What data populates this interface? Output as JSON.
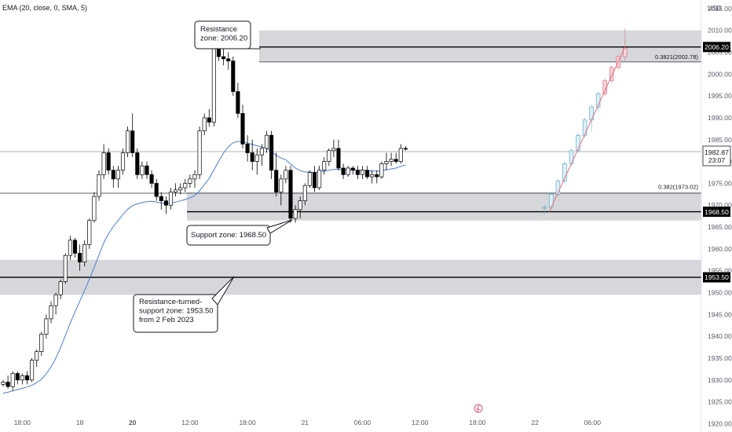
{
  "indicator_label": "EMA (20, close, 0, SMA, 5)",
  "chart_data": {
    "type": "candlestick",
    "currency": "USD",
    "ylim": [
      1919,
      2013
    ],
    "y_ticks": [
      1920,
      1925,
      1930,
      1935,
      1940,
      1945,
      1950,
      1955,
      1960,
      1965,
      1970,
      1975,
      1980,
      1985,
      1990,
      1995,
      2000,
      2005,
      2010,
      2015
    ],
    "x_ticks": [
      "18:00",
      "18",
      "20",
      "12:00",
      "18:00",
      "21",
      "06:00",
      "12:00",
      "18:00",
      "22",
      "06:00"
    ],
    "x_tick_idx": [
      4,
      16,
      27,
      39,
      51,
      63,
      75,
      87,
      99,
      111,
      123
    ],
    "candles": [
      [
        1929.0,
        1930.0,
        1928.5,
        1929.5
      ],
      [
        1929.5,
        1931.0,
        1928.0,
        1928.5
      ],
      [
        1928.5,
        1932.0,
        1927.5,
        1931.5
      ],
      [
        1931.5,
        1932.0,
        1929.0,
        1930.0
      ],
      [
        1930.0,
        1931.5,
        1929.0,
        1931.0
      ],
      [
        1931.0,
        1932.0,
        1929.0,
        1930.0
      ],
      [
        1930.0,
        1935.0,
        1929.5,
        1934.5
      ],
      [
        1934.5,
        1937.0,
        1933.0,
        1936.5
      ],
      [
        1936.5,
        1941.0,
        1935.5,
        1940.5
      ],
      [
        1940.5,
        1945.0,
        1939.5,
        1944.0
      ],
      [
        1944.0,
        1948.0,
        1943.0,
        1947.0
      ],
      [
        1947.0,
        1950.0,
        1945.0,
        1949.5
      ],
      [
        1949.5,
        1953.0,
        1948.5,
        1952.5
      ],
      [
        1952.5,
        1959.0,
        1952.0,
        1958.5
      ],
      [
        1958.5,
        1963.0,
        1957.5,
        1962.0
      ],
      [
        1962.0,
        1962.5,
        1958.0,
        1959.0
      ],
      [
        1959.0,
        1961.0,
        1955.0,
        1957.0
      ],
      [
        1957.0,
        1962.0,
        1956.0,
        1961.0
      ],
      [
        1961.0,
        1967.0,
        1960.0,
        1966.5
      ],
      [
        1966.5,
        1973.0,
        1966.0,
        1972.0
      ],
      [
        1972.0,
        1978.0,
        1971.0,
        1977.0
      ],
      [
        1977.0,
        1984.0,
        1976.0,
        1982.0
      ],
      [
        1982.0,
        1983.0,
        1977.0,
        1978.0
      ],
      [
        1978.0,
        1979.0,
        1974.0,
        1976.0
      ],
      [
        1976.0,
        1979.0,
        1974.0,
        1978.0
      ],
      [
        1978.0,
        1983.0,
        1977.0,
        1982.0
      ],
      [
        1982.0,
        1988.0,
        1981.0,
        1987.0
      ],
      [
        1987.0,
        1991.0,
        1981.0,
        1982.0
      ],
      [
        1982.0,
        1983.0,
        1976.0,
        1977.0
      ],
      [
        1977.0,
        1980.0,
        1976.0,
        1979.0
      ],
      [
        1979.0,
        1980.0,
        1976.0,
        1977.0
      ],
      [
        1977.0,
        1978.0,
        1974.0,
        1975.0
      ],
      [
        1975.0,
        1976.0,
        1971.0,
        1972.0
      ],
      [
        1972.0,
        1973.0,
        1969.0,
        1971.0
      ],
      [
        1971.0,
        1972.0,
        1968.0,
        1970.0
      ],
      [
        1970.0,
        1974.0,
        1969.0,
        1973.0
      ],
      [
        1973.0,
        1975.0,
        1972.0,
        1973.5
      ],
      [
        1973.5,
        1975.0,
        1972.5,
        1974.0
      ],
      [
        1974.0,
        1976.0,
        1973.0,
        1975.0
      ],
      [
        1975.0,
        1977.0,
        1974.0,
        1976.0
      ],
      [
        1976.0,
        1978.0,
        1974.0,
        1977.0
      ],
      [
        1977.0,
        1988.0,
        1976.0,
        1987.0
      ],
      [
        1987.0,
        1991.0,
        1986.0,
        1990.0
      ],
      [
        1990.0,
        1992.0,
        1988.0,
        1989.0
      ],
      [
        1989.0,
        2007.0,
        1988.0,
        2006.0
      ],
      [
        2006.0,
        2010.0,
        2003.0,
        2004.0
      ],
      [
        2004.0,
        2006.0,
        2002.0,
        2003.5
      ],
      [
        2003.5,
        2005.0,
        2001.0,
        2003.0
      ],
      [
        2003.0,
        2004.0,
        1995.0,
        1996.0
      ],
      [
        1996.0,
        1998.0,
        1990.0,
        1991.0
      ],
      [
        1991.0,
        1993.0,
        1983.0,
        1984.0
      ],
      [
        1984.0,
        1986.0,
        1980.0,
        1982.0
      ],
      [
        1982.0,
        1985.0,
        1978.0,
        1980.0
      ],
      [
        1980.0,
        1983.0,
        1977.0,
        1981.5
      ],
      [
        1981.5,
        1984.0,
        1979.0,
        1983.0
      ],
      [
        1983.0,
        1987.0,
        1982.0,
        1986.0
      ],
      [
        1986.0,
        1987.0,
        1976.0,
        1978.0
      ],
      [
        1978.0,
        1982.0,
        1972.0,
        1973.0
      ],
      [
        1973.0,
        1977.0,
        1970.0,
        1976.0
      ],
      [
        1976.0,
        1979.0,
        1975.0,
        1978.0
      ],
      [
        1978.0,
        1979.0,
        1966.0,
        1967.0
      ],
      [
        1967.0,
        1970.0,
        1966.0,
        1969.0
      ],
      [
        1969.0,
        1972.0,
        1967.0,
        1971.0
      ],
      [
        1971.0,
        1975.0,
        1970.0,
        1974.5
      ],
      [
        1974.5,
        1978.0,
        1974.0,
        1977.5
      ],
      [
        1977.5,
        1979.0,
        1973.0,
        1974.0
      ],
      [
        1974.0,
        1979.0,
        1973.5,
        1978.0
      ],
      [
        1978.0,
        1981.0,
        1977.0,
        1980.0
      ],
      [
        1980.0,
        1983.0,
        1979.0,
        1982.5
      ],
      [
        1982.5,
        1985.0,
        1981.0,
        1983.0
      ],
      [
        1983.0,
        1985.0,
        1978.0,
        1978.5
      ],
      [
        1978.5,
        1979.5,
        1976.0,
        1977.0
      ],
      [
        1977.0,
        1979.0,
        1976.5,
        1978.5
      ],
      [
        1978.5,
        1979.0,
        1977.0,
        1978.0
      ],
      [
        1978.0,
        1979.0,
        1976.0,
        1977.0
      ],
      [
        1977.0,
        1979.0,
        1976.0,
        1978.0
      ],
      [
        1978.0,
        1979.0,
        1976.0,
        1976.5
      ],
      [
        1976.5,
        1978.0,
        1975.0,
        1977.0
      ],
      [
        1977.0,
        1978.0,
        1975.0,
        1976.5
      ],
      [
        1976.5,
        1980.0,
        1976.0,
        1979.5
      ],
      [
        1979.5,
        1982.0,
        1978.0,
        1980.0
      ],
      [
        1980.0,
        1982.0,
        1979.0,
        1980.5
      ],
      [
        1980.5,
        1982.0,
        1979.5,
        1980.0
      ],
      [
        1980.0,
        1984.0,
        1979.5,
        1983.0
      ],
      [
        1983.0,
        1983.5,
        1982.5,
        1982.87
      ]
    ],
    "ema_values": [
      1927.0,
      1927.2,
      1927.5,
      1927.8,
      1928.1,
      1928.4,
      1928.8,
      1929.4,
      1930.2,
      1931.4,
      1933.0,
      1935.0,
      1937.4,
      1940.2,
      1943.0,
      1945.6,
      1948.0,
      1950.5,
      1953.1,
      1955.8,
      1958.6,
      1961.4,
      1963.5,
      1965.1,
      1966.5,
      1967.9,
      1969.1,
      1969.9,
      1970.3,
      1970.6,
      1970.8,
      1970.9,
      1970.7,
      1970.5,
      1970.4,
      1970.5,
      1970.7,
      1971.0,
      1971.3,
      1971.7,
      1972.2,
      1973.3,
      1974.7,
      1976.1,
      1978.1,
      1980.1,
      1981.9,
      1983.4,
      1984.3,
      1984.6,
      1984.5,
      1984.2,
      1983.9,
      1983.6,
      1983.3,
      1983.0,
      1982.3,
      1981.4,
      1980.8,
      1980.4,
      1979.4,
      1978.5,
      1977.9,
      1977.6,
      1977.6,
      1977.5,
      1977.6,
      1977.8,
      1978.0,
      1978.2,
      1978.2,
      1978.1,
      1978.1,
      1978.1,
      1978.0,
      1978.0,
      1977.9,
      1977.8,
      1977.8,
      1977.9,
      1978.1,
      1978.3,
      1978.5,
      1978.9,
      1979.2
    ],
    "projection": [
      [
        1969.5,
        1970.0,
        1968.0,
        1969.5
      ],
      [
        1969.5,
        1973.0,
        1969.0,
        1972.5
      ],
      [
        1972.5,
        1976.0,
        1972.0,
        1975.5
      ],
      [
        1975.5,
        1980.0,
        1975.0,
        1979.5
      ],
      [
        1979.5,
        1983.0,
        1979.0,
        1982.5
      ],
      [
        1982.5,
        1986.5,
        1982.0,
        1986.0
      ],
      [
        1986.0,
        1990.0,
        1985.5,
        1989.5
      ],
      [
        1989.5,
        1993.0,
        1987.0,
        1992.5
      ],
      [
        1992.5,
        1996.0,
        1991.5,
        1995.5
      ],
      [
        1995.5,
        1999.0,
        1995.0,
        1998.5
      ],
      [
        1998.5,
        2002.0,
        1998.0,
        2001.5
      ],
      [
        2001.5,
        2004.5,
        2001.0,
        2004.0
      ],
      [
        2004.0,
        2010.5,
        2003.0,
        2006.0
      ]
    ],
    "projection_start_idx": 113,
    "projection_step": 1.4,
    "levels": [
      {
        "price": 2006.2,
        "zone": [
          2002.78,
          2010.0
        ],
        "label": "2006.20"
      },
      {
        "price": 1968.5,
        "zone": [
          1966.5,
          1973.0
        ],
        "label": "1968.50"
      },
      {
        "price": 1953.5,
        "zone": [
          1949.5,
          1957.5
        ],
        "label": "1953.50"
      }
    ],
    "current_price": "1982.87",
    "countdown": "23:07",
    "fib_labels": [
      {
        "price": 2002.78,
        "text": "0.3821(2002.78)"
      },
      {
        "price": 1973.02,
        "text": "0.382(1973.02)"
      }
    ],
    "annotations": [
      {
        "text": [
          "Resistance",
          "zone: 2006.20"
        ]
      },
      {
        "text": [
          "Support zone: 1968.50"
        ]
      },
      {
        "text": [
          "Resistance-turned-",
          "support zone: 1953.50",
          "from 2 Feb 2023"
        ]
      }
    ]
  }
}
